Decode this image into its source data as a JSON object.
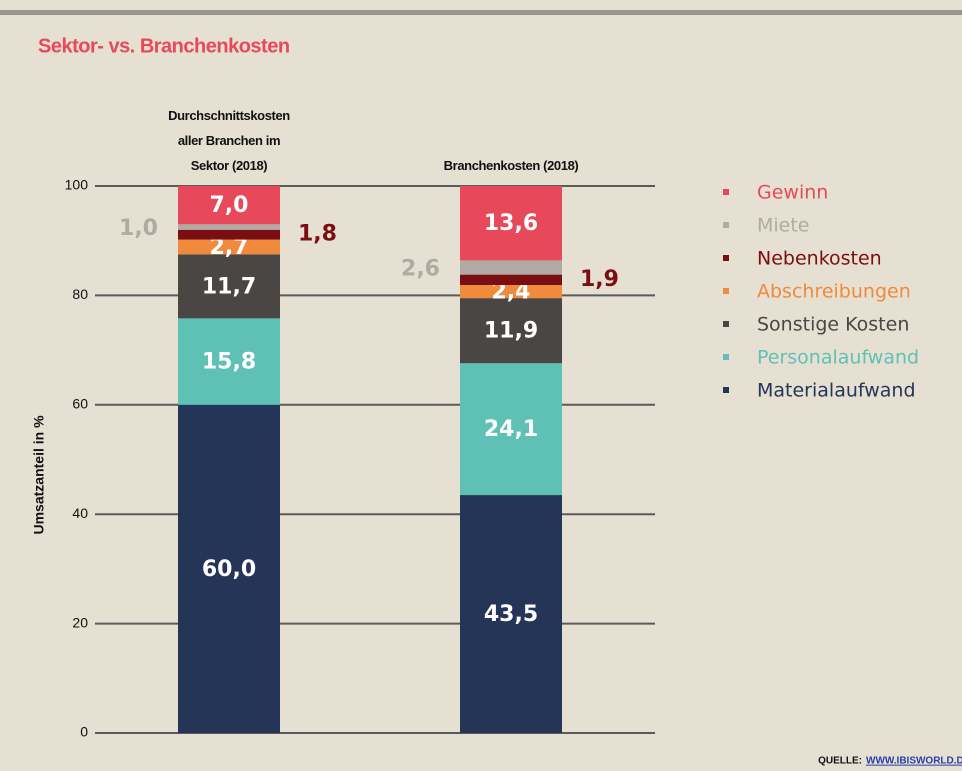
{
  "chart_data": {
    "type": "stacked_bar",
    "title": "Sektor- vs. Branchenkosten",
    "y_label": "Umsatzanteil in %",
    "categories": [
      "Durchschnittskosten aller Branchen im Sektor (2018)",
      "Branchenkosten (2018)"
    ],
    "series": [
      {
        "name": "Materialaufwand",
        "color": "#253558",
        "values": [
          60.0,
          43.5
        ],
        "value_labels": [
          "60,0",
          "43,5"
        ]
      },
      {
        "name": "Personalaufwand",
        "color": "#5fc0b5",
        "values": [
          15.8,
          24.1
        ],
        "value_labels": [
          "15,8",
          "24,1"
        ]
      },
      {
        "name": "Sonstige Kosten",
        "color": "#4a4644",
        "values": [
          11.7,
          11.9
        ],
        "value_labels": [
          "11,7",
          "11,9"
        ]
      },
      {
        "name": "Abschreibungen",
        "color": "#f08a3c",
        "values": [
          2.7,
          2.4
        ],
        "value_labels": [
          "2,7",
          "2,4"
        ]
      },
      {
        "name": "Nebenkosten",
        "color": "#7a0e12",
        "values": [
          1.8,
          1.9
        ],
        "value_labels": [
          "1,8",
          "1,9"
        ],
        "label_position": "right"
      },
      {
        "name": "Miete",
        "color": "#b0aaa3",
        "values": [
          1.0,
          2.6
        ],
        "value_labels": [
          "1,0",
          "2,6"
        ],
        "label_position": "left"
      },
      {
        "name": "Gewinn",
        "color": "#e8495a",
        "values": [
          7.0,
          13.6
        ],
        "value_labels": [
          "7,0",
          "13,6"
        ]
      }
    ],
    "ylim": [
      0,
      100
    ],
    "yticks": [
      0,
      20,
      40,
      60,
      80,
      100
    ],
    "grid": true,
    "legend": "right",
    "source_label": "QUELLE:",
    "source_link": "WWW.IBISWORLD.DE"
  }
}
